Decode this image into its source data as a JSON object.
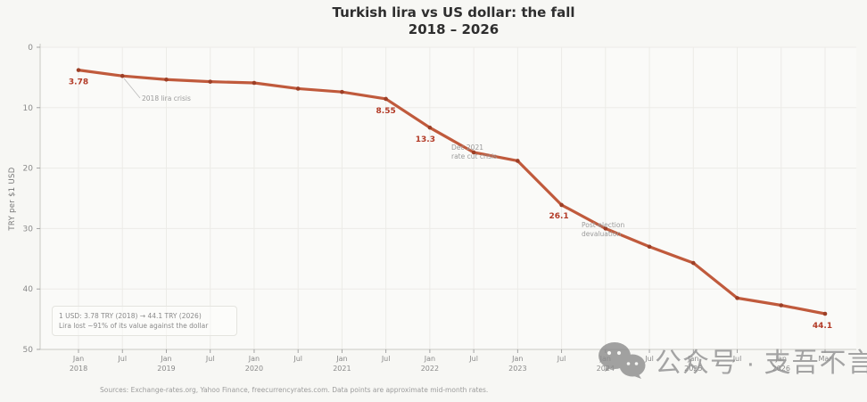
{
  "figure": {
    "title": "Turkish lira vs US dollar: the fall",
    "subtitle": "2018 – 2026"
  },
  "chart_data": {
    "type": "line",
    "title": "Turkish lira vs US dollar: the fall",
    "subtitle": "2018 – 2026",
    "xlabel": "",
    "ylabel": "TRY per $1 USD",
    "ylim": [
      0,
      50
    ],
    "y_axis_inverted": true,
    "grid": true,
    "yticks": [
      0,
      10,
      20,
      30,
      40,
      50
    ],
    "x_ticks": [
      {
        "month": "Jan",
        "year": "2018"
      },
      {
        "month": "Jul",
        "year": ""
      },
      {
        "month": "Jan",
        "year": "2019"
      },
      {
        "month": "Jul",
        "year": ""
      },
      {
        "month": "Jan",
        "year": "2020"
      },
      {
        "month": "Jul",
        "year": ""
      },
      {
        "month": "Jan",
        "year": "2021"
      },
      {
        "month": "Jul",
        "year": ""
      },
      {
        "month": "Jan",
        "year": "2022"
      },
      {
        "month": "Jul",
        "year": ""
      },
      {
        "month": "Jan",
        "year": "2023"
      },
      {
        "month": "Jul",
        "year": ""
      },
      {
        "month": "Jan",
        "year": "2024"
      },
      {
        "month": "Jul",
        "year": ""
      },
      {
        "month": "Jan",
        "year": "2025"
      },
      {
        "month": "Jul",
        "year": ""
      },
      {
        "month": "Jan",
        "year": "2026"
      },
      {
        "month": "Mar",
        "year": ""
      }
    ],
    "series": [
      {
        "name": "USD/TRY exchange rate",
        "color": "#c05a3c",
        "marker_color": "#9d3f26",
        "values": [
          3.78,
          4.75,
          5.35,
          5.7,
          5.9,
          6.85,
          7.4,
          8.55,
          13.3,
          17.4,
          18.8,
          26.1,
          30.0,
          33.0,
          35.7,
          41.5,
          42.7,
          44.1
        ]
      }
    ],
    "point_labels": [
      {
        "index": 0,
        "text": "3.78"
      },
      {
        "index": 7,
        "text": "8.55"
      },
      {
        "index": 8,
        "text": "13.3"
      },
      {
        "index": 11,
        "text": "26.1"
      },
      {
        "index": 17,
        "text": "44.1"
      }
    ],
    "point_label_color": "#b23a26",
    "annotations": [
      {
        "lines": [
          "2018 lira crisis"
        ]
      },
      {
        "lines": [
          "Dec 2021",
          "rate cut crisis"
        ]
      },
      {
        "lines": [
          "Post-election",
          "devaluation"
        ]
      }
    ],
    "annotation_color": "#9a9a9a"
  },
  "summary_box": {
    "line1": "1 USD: 3.78 TRY (2018) → 44.1 TRY (2026)",
    "line2": "Lira lost ~91% of its value against the dollar"
  },
  "footer": {
    "source": "Sources: Exchange-rates.org, Yahoo Finance, freecurrencyrates.com. Data points are approximate mid-month rates."
  },
  "watermark": {
    "icon": "wechat-icon",
    "text": "公众号 · 支吾不言"
  }
}
